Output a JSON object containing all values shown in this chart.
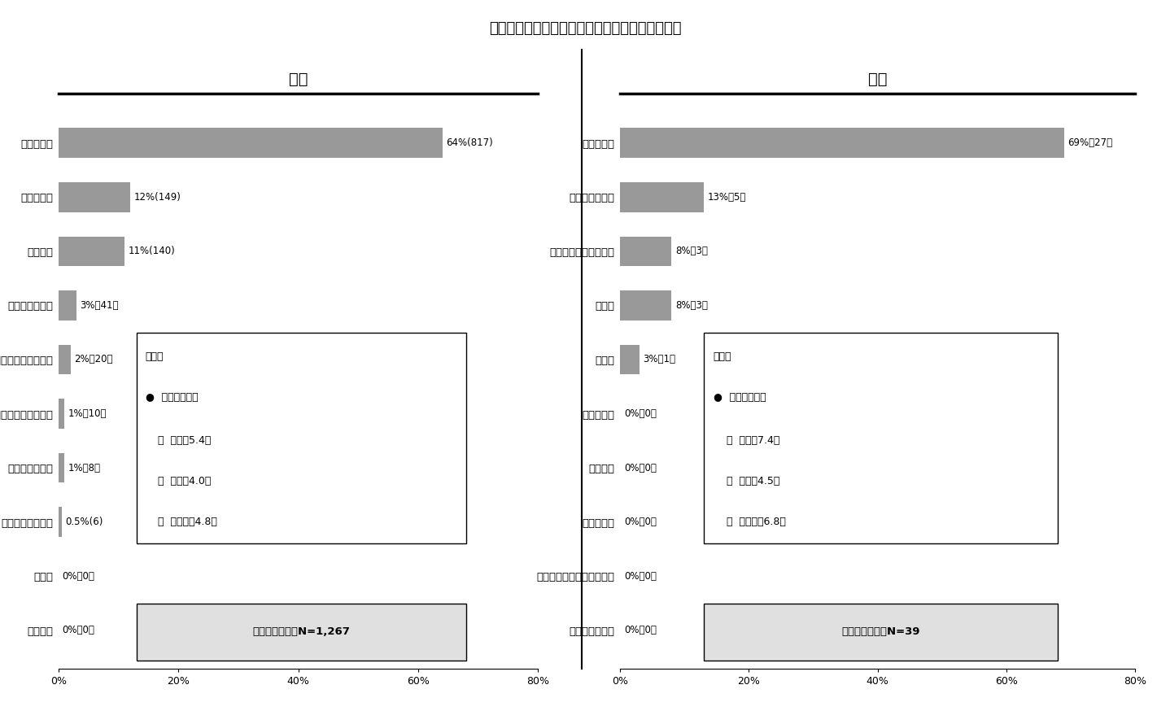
{
  "title": "短期入所療養介護・短期入所生活介護の利用目的",
  "left_title": "老健",
  "right_title": "特養",
  "left_categories": [
    "レスパイト",
    "家族の外出",
    "リハビリ",
    "家族の体調不良",
    "他施設入所までの待機",
    "状態把握（アセスメント）",
    "服薬管理・調整",
    "治療・医療的措置",
    "看取り",
    "行政措置"
  ],
  "left_values": [
    64,
    12,
    11,
    3,
    2,
    1,
    1,
    0.5,
    0,
    0
  ],
  "left_labels": [
    "64%(817)",
    "12%(149)",
    "11%(140)",
    "3%（41）",
    "2%（20）",
    "1%（10）",
    "1%（8）",
    "0.5%(6)",
    "0%（0）",
    "0%（0）"
  ],
  "right_categories": [
    "レスパイト",
    "家族の体調不良",
    "他施設入所までの待機",
    "その他",
    "看取り",
    "家族の外出",
    "行政措置",
    "医療的処置",
    "状態把握（アセスメント）",
    "服薬管理・調整"
  ],
  "right_values": [
    69,
    13,
    8,
    8,
    3,
    0,
    0,
    0,
    0,
    0
  ],
  "right_labels": [
    "69%（27）",
    "13%（5）",
    "8%（3）",
    "8%（3）",
    "3%（1）",
    "0%（0）",
    "0%（0）",
    "0%（0）",
    "0%（0）",
    "0%（0）"
  ],
  "bar_color": "#999999",
  "bg_color": "#ffffff",
  "left_box1_title": "日数：",
  "left_box1_bullet": "●  通常ショート",
  "left_box1_line2": "・  平均　5.4日",
  "left_box1_line3": "・  中央値4.0日",
  "left_box1_line4": "・  標準偏差4.8日",
  "left_box2": "通常ショート：N=1,267",
  "right_box1_title": "日数：",
  "right_box1_bullet": "●  通常ショート",
  "right_box1_line2": "・  平均　7.4日",
  "right_box1_line3": "・  中央値4.5日",
  "right_box1_line4": "・  標準偏差6.8日",
  "right_box2": "通常ショート：N=39",
  "xlim": [
    0,
    80
  ],
  "xticks": [
    0,
    20,
    40,
    60,
    80
  ],
  "xticklabels": [
    "0%",
    "20%",
    "40%",
    "60%",
    "80%"
  ]
}
